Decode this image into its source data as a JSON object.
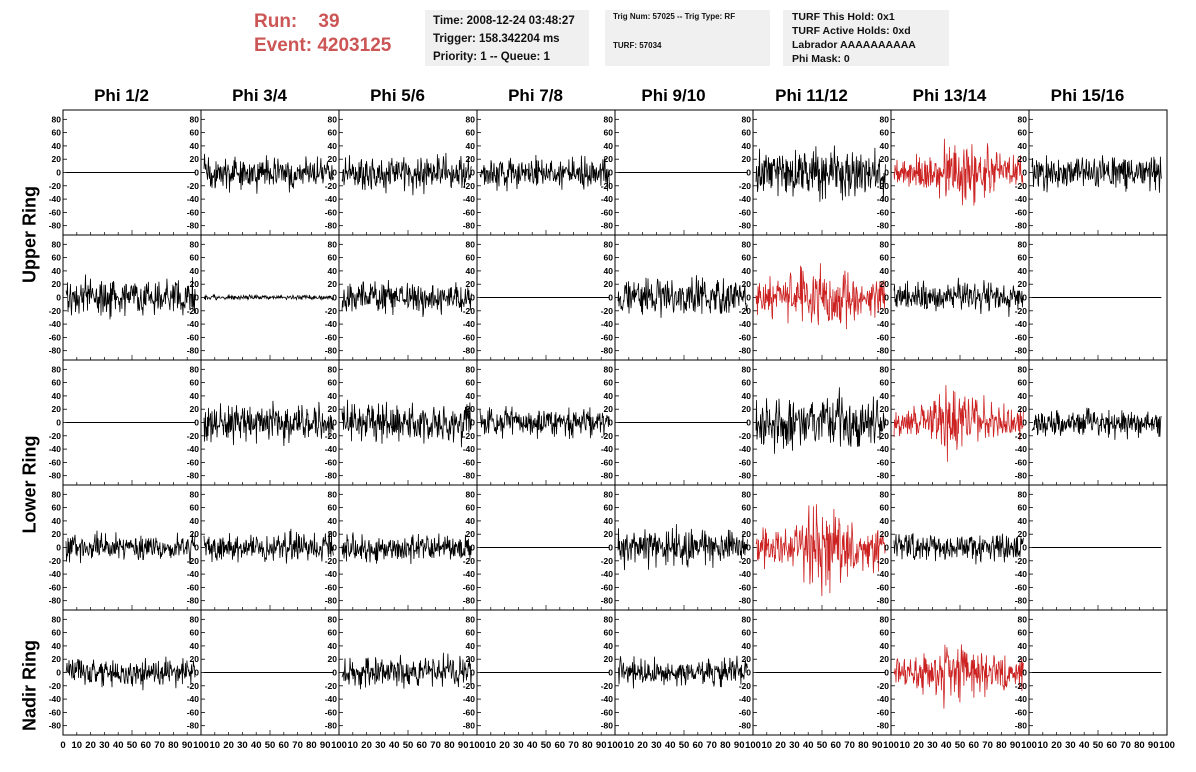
{
  "header": {
    "run_label": "Run:",
    "run_value": "39",
    "event_label": "Event:",
    "event_value": "4203125"
  },
  "info_time": {
    "time": "Time: 2008-12-24 03:48:27",
    "trigger": "Trigger: 158.342204 ms",
    "priority": "Priority: 1 -- Queue: 1"
  },
  "info_trig": {
    "trig": "Trig Num: 57025 -- Trig Type: RF",
    "turf": "TURF: 57034"
  },
  "info_turf": {
    "hold": "TURF This Hold: 0x1",
    "active": "TURF Active Holds: 0xd",
    "labrador": "Labrador AAAAAAAAAA",
    "phimask": "Phi Mask: 0"
  },
  "chart_data": {
    "type": "line",
    "columns": [
      "Phi 1/2",
      "Phi 3/4",
      "Phi 5/6",
      "Phi 7/8",
      "Phi 9/10",
      "Phi 11/12",
      "Phi 13/14",
      "Phi 15/16"
    ],
    "rings": [
      {
        "label": "Upper Ring",
        "rows": [
          0,
          1
        ]
      },
      {
        "label": "Lower Ring",
        "rows": [
          2,
          3
        ]
      },
      {
        "label": "Nadir Ring",
        "rows": [
          4
        ]
      }
    ],
    "xlim": [
      0,
      100
    ],
    "ylim": [
      -85,
      85
    ],
    "x_ticks": [
      0,
      10,
      20,
      30,
      40,
      50,
      60,
      70,
      80,
      90,
      100
    ],
    "y_ticks": [
      -80,
      -60,
      -40,
      -20,
      0,
      20,
      40,
      60,
      80
    ],
    "colors": {
      "normal": "#000000",
      "triggered": "#cc2222"
    },
    "amplitude": [
      [
        0,
        13,
        14,
        13,
        0,
        20,
        23,
        15
      ],
      [
        14,
        2,
        12,
        0,
        15,
        24,
        12,
        0
      ],
      [
        0,
        14,
        16,
        11,
        0,
        20,
        22,
        11
      ],
      [
        11,
        12,
        11,
        0,
        16,
        27,
        11,
        0
      ],
      [
        11,
        0,
        13,
        0,
        11,
        0,
        22,
        0
      ]
    ],
    "triggered": [
      [
        false,
        false,
        false,
        false,
        false,
        false,
        true,
        false
      ],
      [
        false,
        false,
        false,
        false,
        false,
        true,
        false,
        false
      ],
      [
        false,
        false,
        false,
        false,
        false,
        false,
        true,
        false
      ],
      [
        false,
        false,
        false,
        false,
        false,
        true,
        false,
        false
      ],
      [
        false,
        false,
        false,
        false,
        false,
        false,
        true,
        false
      ]
    ]
  }
}
